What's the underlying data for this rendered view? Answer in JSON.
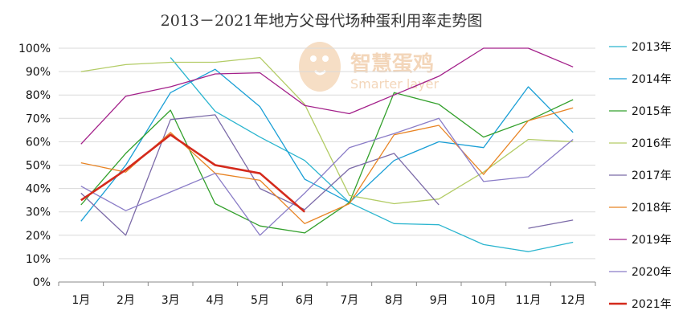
{
  "chart_data": {
    "type": "line",
    "title": "2013－2021年地方父母代场种蛋利用率走势图",
    "watermark": {
      "brand": "智慧蛋鸡",
      "sub": "Smarter layer"
    },
    "categories": [
      "1月",
      "2月",
      "3月",
      "4月",
      "5月",
      "6月",
      "7月",
      "8月",
      "9月",
      "10月",
      "11月",
      "12月"
    ],
    "ylim": [
      0,
      100
    ],
    "yticks": [
      0,
      10,
      20,
      30,
      40,
      50,
      60,
      70,
      80,
      90,
      100
    ],
    "ytick_labels": [
      "0%",
      "10%",
      "20%",
      "30%",
      "40%",
      "50%",
      "60%",
      "70%",
      "80%",
      "90%",
      "100%"
    ],
    "grid": true,
    "legend": "right",
    "series": [
      {
        "name": "2013年",
        "color": "#2bb5cf",
        "width": 1.3,
        "values": [
          null,
          null,
          96,
          73,
          62,
          52,
          34,
          25,
          24.5,
          16,
          13,
          17
        ]
      },
      {
        "name": "2014年",
        "color": "#1a9fd6",
        "width": 1.3,
        "values": [
          26,
          50,
          81,
          91,
          75,
          44,
          34,
          52,
          60,
          57.5,
          83.5,
          64
        ]
      },
      {
        "name": "2015年",
        "color": "#33a02c",
        "width": 1.3,
        "values": [
          33,
          55,
          73.5,
          33.5,
          24,
          21,
          34,
          81,
          76,
          62,
          69,
          78
        ]
      },
      {
        "name": "2016年",
        "color": "#b3cc66",
        "width": 1.3,
        "values": [
          90,
          93,
          94,
          94,
          96,
          76,
          37,
          33.5,
          35.5,
          47,
          61,
          60
        ]
      },
      {
        "name": "2017年",
        "color": "#7b6aa8",
        "width": 1.3,
        "values": [
          38,
          20,
          69.5,
          71.5,
          40,
          31,
          48.5,
          55,
          33,
          null,
          23,
          26.5
        ]
      },
      {
        "name": "2018年",
        "color": "#e88424",
        "width": 1.3,
        "values": [
          51,
          47,
          64,
          46.5,
          43.5,
          25,
          33.5,
          63,
          67,
          46,
          69,
          74.5
        ]
      },
      {
        "name": "2019年",
        "color": "#a3208a",
        "width": 1.3,
        "values": [
          59,
          79.5,
          83.5,
          89,
          89.5,
          75.5,
          72,
          80,
          88,
          100,
          100,
          92
        ]
      },
      {
        "name": "2020年",
        "color": "#8a7cc7",
        "width": 1.3,
        "values": [
          41,
          30.5,
          38.5,
          46.5,
          20,
          38,
          57.5,
          63.5,
          70,
          43,
          45,
          61
        ]
      },
      {
        "name": "2021年",
        "color": "#d42a1c",
        "width": 2.6,
        "values": [
          35,
          48,
          63,
          50,
          46.5,
          30,
          null,
          null,
          null,
          null,
          null,
          null
        ]
      }
    ]
  }
}
